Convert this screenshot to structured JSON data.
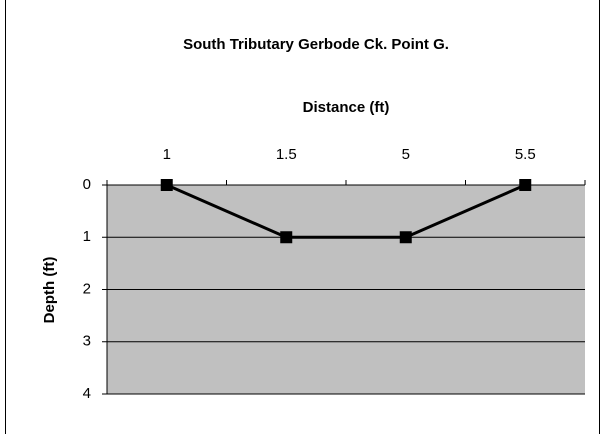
{
  "chart_data": {
    "type": "line",
    "title": "South Tributary Gerbode Ck. Point G.",
    "x_label": "Distance (ft)",
    "y_label": "Depth (ft)",
    "categories": [
      "1",
      "1.5",
      "5",
      "5.5"
    ],
    "series": [
      {
        "name": "Depth",
        "color": "#000000",
        "values": [
          0,
          1,
          1,
          0
        ]
      }
    ],
    "ylim": [
      0,
      4
    ],
    "yticks": [
      0,
      1,
      2,
      3,
      4
    ],
    "y_inverted": true,
    "x_axis_position": "top",
    "grid": true,
    "plot_background": "#c0c0c0",
    "marker": "square"
  }
}
